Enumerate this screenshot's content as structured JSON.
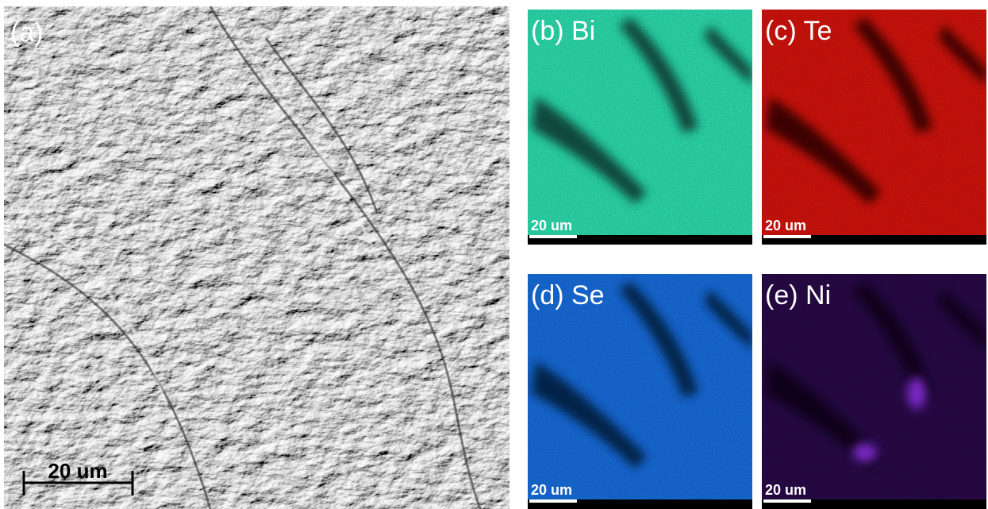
{
  "panels": [
    {
      "label": "(a)",
      "scale_bar": "20 um"
    },
    {
      "label": "(b) Bi",
      "scale_bar": "20 um"
    },
    {
      "label": "(c) Te",
      "scale_bar": "20 um"
    },
    {
      "label": "(d) Se",
      "scale_bar": "20 um"
    },
    {
      "label": "(e) Ni",
      "scale_bar": "20 um"
    }
  ]
}
